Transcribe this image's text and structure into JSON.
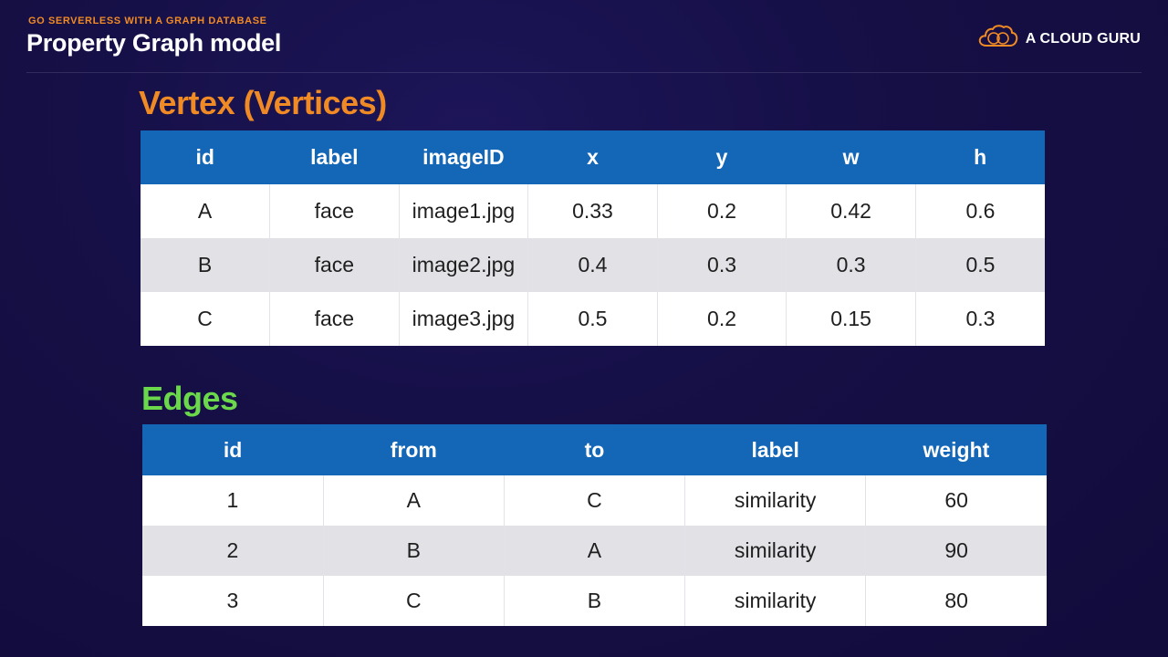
{
  "header": {
    "kicker": "GO SERVERLESS WITH A GRAPH DATABASE",
    "title": "Property Graph model",
    "brand": "A CLOUD GURU",
    "brand_icon": "cloud-logo-icon",
    "brand_icon_color": "#f08a24"
  },
  "vertex": {
    "title": "Vertex (Vertices)",
    "title_color": "#f08a24",
    "columns": [
      "id",
      "label",
      "imageID",
      "x",
      "y",
      "w",
      "h"
    ],
    "rows": [
      [
        "A",
        "face",
        "image1.jpg",
        "0.33",
        "0.2",
        "0.42",
        "0.6"
      ],
      [
        "B",
        "face",
        "image2.jpg",
        "0.4",
        "0.3",
        "0.3",
        "0.5"
      ],
      [
        "C",
        "face",
        "image3.jpg",
        "0.5",
        "0.2",
        "0.15",
        "0.3"
      ]
    ]
  },
  "edges": {
    "title": "Edges",
    "title_color": "#6ad84a",
    "columns": [
      "id",
      "from",
      "to",
      "label",
      "weight"
    ],
    "rows": [
      [
        "1",
        "A",
        "C",
        "similarity",
        "60"
      ],
      [
        "2",
        "B",
        "A",
        "similarity",
        "90"
      ],
      [
        "3",
        "C",
        "B",
        "similarity",
        "80"
      ]
    ]
  },
  "colors": {
    "header_blue": "#1466b6",
    "row_alt": "#e1e1e6"
  }
}
